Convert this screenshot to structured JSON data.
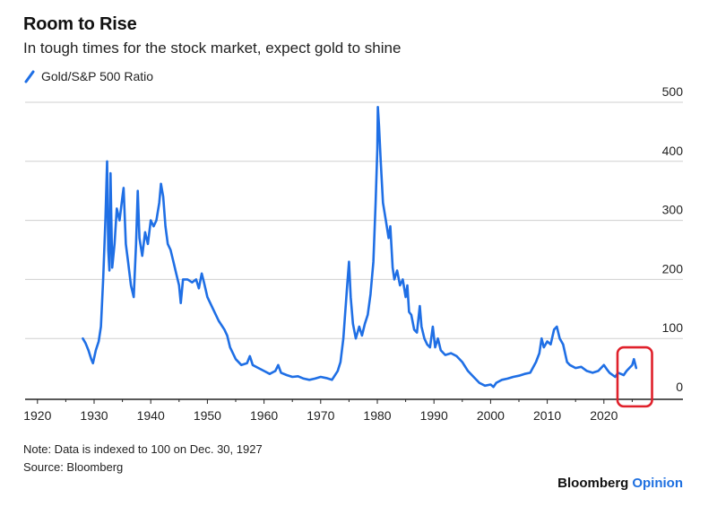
{
  "chart_data": {
    "type": "line",
    "title": "Room to Rise",
    "subtitle": "In tough times for the stock market, expect gold to shine",
    "legend_placement": "top-left",
    "grid": "horizontal",
    "series": [
      {
        "name": "Gold/S&P 500 Ratio",
        "color": "#1f6fe5",
        "points": [
          [
            1928.0,
            100
          ],
          [
            1928.5,
            92
          ],
          [
            1929.0,
            80
          ],
          [
            1929.5,
            65
          ],
          [
            1929.8,
            58
          ],
          [
            1930.3,
            80
          ],
          [
            1930.8,
            95
          ],
          [
            1931.2,
            120
          ],
          [
            1931.6,
            200
          ],
          [
            1932.0,
            300
          ],
          [
            1932.3,
            400
          ],
          [
            1932.5,
            250
          ],
          [
            1932.7,
            215
          ],
          [
            1932.9,
            380
          ],
          [
            1933.2,
            220
          ],
          [
            1933.6,
            260
          ],
          [
            1934.0,
            320
          ],
          [
            1934.5,
            300
          ],
          [
            1935.0,
            340
          ],
          [
            1935.2,
            355
          ],
          [
            1935.6,
            260
          ],
          [
            1936.0,
            230
          ],
          [
            1936.5,
            190
          ],
          [
            1937.0,
            170
          ],
          [
            1937.4,
            260
          ],
          [
            1937.7,
            350
          ],
          [
            1938.0,
            270
          ],
          [
            1938.5,
            240
          ],
          [
            1939.0,
            280
          ],
          [
            1939.5,
            260
          ],
          [
            1940.0,
            300
          ],
          [
            1940.5,
            290
          ],
          [
            1941.0,
            300
          ],
          [
            1941.5,
            330
          ],
          [
            1941.8,
            362
          ],
          [
            1942.2,
            340
          ],
          [
            1942.6,
            290
          ],
          [
            1943.0,
            260
          ],
          [
            1943.5,
            250
          ],
          [
            1944.0,
            230
          ],
          [
            1944.5,
            210
          ],
          [
            1945.0,
            190
          ],
          [
            1945.3,
            160
          ],
          [
            1945.7,
            200
          ],
          [
            1946.5,
            200
          ],
          [
            1947.3,
            195
          ],
          [
            1948.0,
            200
          ],
          [
            1948.5,
            185
          ],
          [
            1949.0,
            210
          ],
          [
            1949.4,
            195
          ],
          [
            1950.0,
            170
          ],
          [
            1951.0,
            150
          ],
          [
            1952.0,
            130
          ],
          [
            1953.0,
            115
          ],
          [
            1953.5,
            105
          ],
          [
            1954.0,
            85
          ],
          [
            1955.0,
            65
          ],
          [
            1956.0,
            55
          ],
          [
            1957.0,
            58
          ],
          [
            1957.5,
            70
          ],
          [
            1958.0,
            55
          ],
          [
            1959.0,
            50
          ],
          [
            1960.0,
            45
          ],
          [
            1961.0,
            40
          ],
          [
            1962.0,
            45
          ],
          [
            1962.5,
            55
          ],
          [
            1963.0,
            42
          ],
          [
            1964.0,
            38
          ],
          [
            1965.0,
            35
          ],
          [
            1966.0,
            36
          ],
          [
            1967.0,
            32
          ],
          [
            1968.0,
            30
          ],
          [
            1969.0,
            32
          ],
          [
            1970.0,
            35
          ],
          [
            1971.0,
            33
          ],
          [
            1972.0,
            30
          ],
          [
            1973.0,
            45
          ],
          [
            1973.5,
            60
          ],
          [
            1974.0,
            100
          ],
          [
            1974.6,
            180
          ],
          [
            1975.0,
            230
          ],
          [
            1975.3,
            170
          ],
          [
            1975.7,
            125
          ],
          [
            1976.2,
            100
          ],
          [
            1976.8,
            120
          ],
          [
            1977.3,
            105
          ],
          [
            1977.8,
            125
          ],
          [
            1978.3,
            140
          ],
          [
            1978.8,
            175
          ],
          [
            1979.3,
            230
          ],
          [
            1979.7,
            330
          ],
          [
            1980.0,
            420
          ],
          [
            1980.1,
            492
          ],
          [
            1980.3,
            460
          ],
          [
            1980.6,
            400
          ],
          [
            1981.0,
            330
          ],
          [
            1981.5,
            300
          ],
          [
            1982.0,
            270
          ],
          [
            1982.3,
            290
          ],
          [
            1982.7,
            220
          ],
          [
            1983.0,
            200
          ],
          [
            1983.5,
            215
          ],
          [
            1984.0,
            190
          ],
          [
            1984.5,
            200
          ],
          [
            1985.0,
            170
          ],
          [
            1985.3,
            190
          ],
          [
            1985.6,
            145
          ],
          [
            1986.0,
            140
          ],
          [
            1986.5,
            115
          ],
          [
            1987.0,
            110
          ],
          [
            1987.5,
            155
          ],
          [
            1987.8,
            120
          ],
          [
            1988.3,
            100
          ],
          [
            1988.8,
            90
          ],
          [
            1989.3,
            85
          ],
          [
            1989.8,
            120
          ],
          [
            1990.2,
            85
          ],
          [
            1990.7,
            100
          ],
          [
            1991.2,
            80
          ],
          [
            1992.0,
            72
          ],
          [
            1993.0,
            75
          ],
          [
            1994.0,
            70
          ],
          [
            1995.0,
            60
          ],
          [
            1996.0,
            45
          ],
          [
            1997.0,
            35
          ],
          [
            1998.0,
            25
          ],
          [
            1999.0,
            20
          ],
          [
            2000.0,
            22
          ],
          [
            2000.5,
            18
          ],
          [
            2001.0,
            25
          ],
          [
            2002.0,
            30
          ],
          [
            2003.0,
            32
          ],
          [
            2004.0,
            35
          ],
          [
            2005.0,
            37
          ],
          [
            2006.0,
            40
          ],
          [
            2007.0,
            42
          ],
          [
            2008.0,
            60
          ],
          [
            2008.6,
            75
          ],
          [
            2009.0,
            100
          ],
          [
            2009.4,
            85
          ],
          [
            2010.0,
            95
          ],
          [
            2010.6,
            90
          ],
          [
            2011.2,
            115
          ],
          [
            2011.7,
            120
          ],
          [
            2012.2,
            100
          ],
          [
            2012.8,
            90
          ],
          [
            2013.5,
            60
          ],
          [
            2014.0,
            55
          ],
          [
            2015.0,
            50
          ],
          [
            2016.0,
            52
          ],
          [
            2017.0,
            45
          ],
          [
            2018.0,
            42
          ],
          [
            2019.0,
            45
          ],
          [
            2020.0,
            55
          ],
          [
            2020.5,
            48
          ],
          [
            2021.0,
            42
          ],
          [
            2022.0,
            35
          ],
          [
            2022.5,
            42
          ],
          [
            2023.0,
            40
          ],
          [
            2023.5,
            38
          ],
          [
            2024.0,
            45
          ],
          [
            2024.5,
            50
          ],
          [
            2025.0,
            55
          ],
          [
            2025.3,
            65
          ],
          [
            2025.7,
            50
          ]
        ]
      }
    ],
    "x": {
      "min": 1917.5,
      "max": 2030,
      "ticks": [
        1920,
        1930,
        1940,
        1950,
        1960,
        1970,
        1980,
        1990,
        2000,
        2010,
        2020
      ]
    },
    "y": {
      "min": 0,
      "max": 500,
      "ticks": [
        0,
        100,
        200,
        300,
        400,
        500
      ],
      "position": "right"
    },
    "highlight": {
      "x0": 2022.4,
      "x1": 2028.5,
      "y0": -15,
      "y1": 85,
      "color": "#e0212b"
    }
  },
  "notes": {
    "note": "Note: Data is indexed to 100 on Dec. 30, 1927",
    "source": "Source: Bloomberg"
  },
  "brand": {
    "name": "Bloomberg",
    "section": "Opinion"
  }
}
